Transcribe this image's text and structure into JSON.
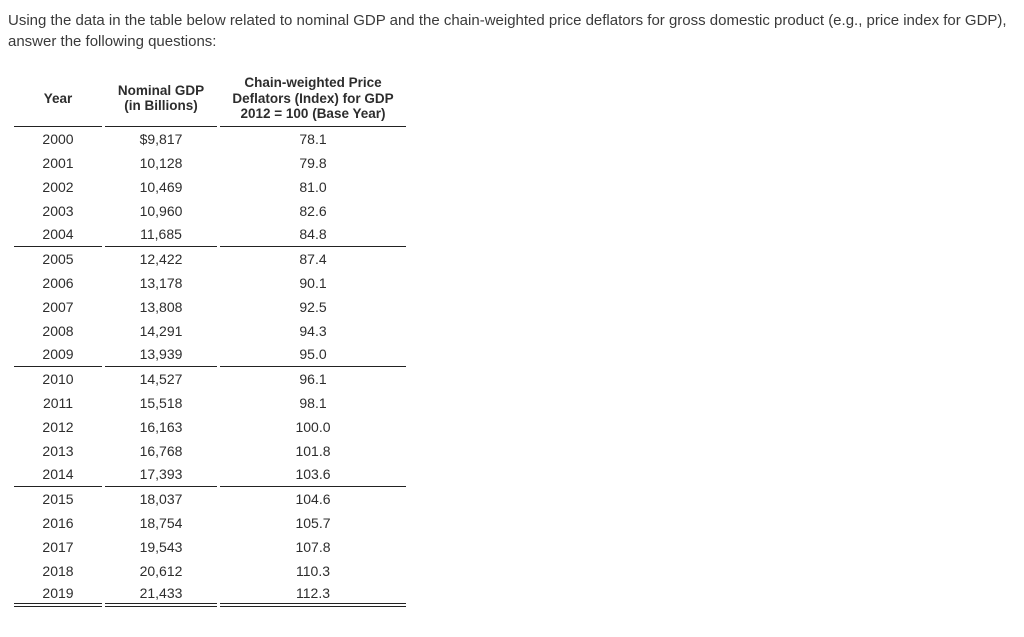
{
  "intro_text": "Using the data in the table below related to nominal GDP and the chain-weighted price deflators for gross domestic product (e.g., price index for GDP), answer the following questions:",
  "table": {
    "columns": [
      {
        "label": "Year"
      },
      {
        "label": "Nominal GDP\n(in Billions)"
      },
      {
        "label": "Chain-weighted Price\nDeflators (Index) for GDP\n2012 = 100 (Base Year)"
      }
    ],
    "rows": [
      {
        "year": "2000",
        "nominal_gdp": "$9,817",
        "deflator": "78.1"
      },
      {
        "year": "2001",
        "nominal_gdp": "10,128",
        "deflator": "79.8"
      },
      {
        "year": "2002",
        "nominal_gdp": "10,469",
        "deflator": "81.0"
      },
      {
        "year": "2003",
        "nominal_gdp": "10,960",
        "deflator": "82.6"
      },
      {
        "year": "2004",
        "nominal_gdp": "11,685",
        "deflator": "84.8"
      },
      {
        "year": "2005",
        "nominal_gdp": "12,422",
        "deflator": "87.4"
      },
      {
        "year": "2006",
        "nominal_gdp": "13,178",
        "deflator": "90.1"
      },
      {
        "year": "2007",
        "nominal_gdp": "13,808",
        "deflator": "92.5"
      },
      {
        "year": "2008",
        "nominal_gdp": "14,291",
        "deflator": "94.3"
      },
      {
        "year": "2009",
        "nominal_gdp": "13,939",
        "deflator": "95.0"
      },
      {
        "year": "2010",
        "nominal_gdp": "14,527",
        "deflator": "96.1"
      },
      {
        "year": "2011",
        "nominal_gdp": "15,518",
        "deflator": "98.1"
      },
      {
        "year": "2012",
        "nominal_gdp": "16,163",
        "deflator": "100.0"
      },
      {
        "year": "2013",
        "nominal_gdp": "16,768",
        "deflator": "101.8"
      },
      {
        "year": "2014",
        "nominal_gdp": "17,393",
        "deflator": "103.6"
      },
      {
        "year": "2015",
        "nominal_gdp": "18,037",
        "deflator": "104.6"
      },
      {
        "year": "2016",
        "nominal_gdp": "18,754",
        "deflator": "105.7"
      },
      {
        "year": "2017",
        "nominal_gdp": "19,543",
        "deflator": "107.8"
      },
      {
        "year": "2018",
        "nominal_gdp": "20,612",
        "deflator": "110.3"
      },
      {
        "year": "2019",
        "nominal_gdp": "21,433",
        "deflator": "112.3"
      }
    ],
    "rows_per_group": 5
  }
}
